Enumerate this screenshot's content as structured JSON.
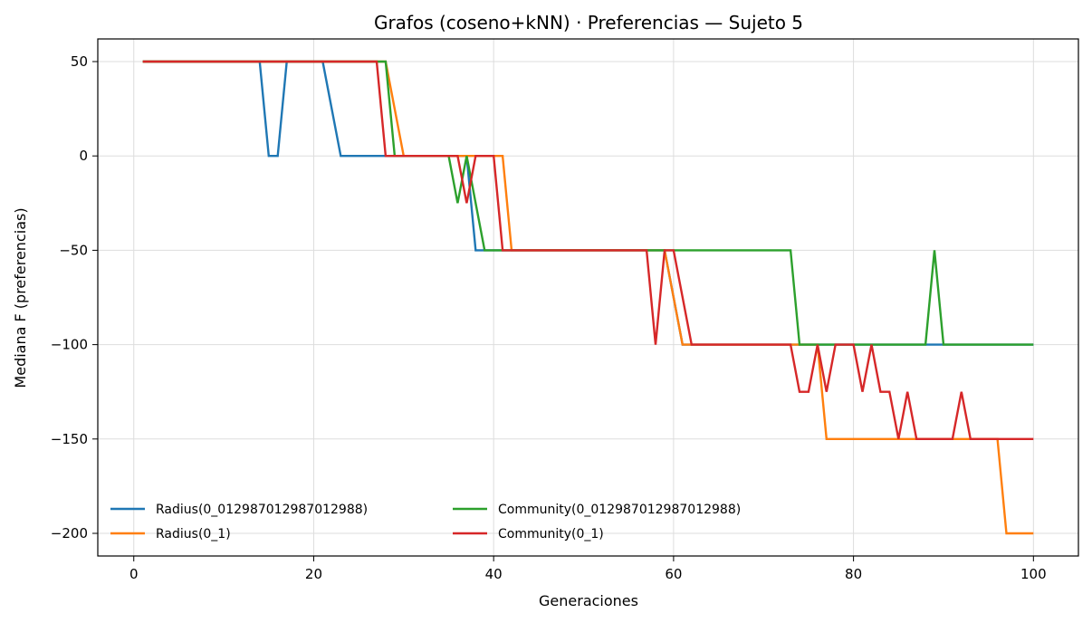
{
  "chart_data": {
    "type": "line",
    "title": "Grafos (coseno+kNN) · Preferencias — Sujeto 5",
    "xlabel": "Generaciones",
    "ylabel": "Mediana F (preferencias)",
    "xlim": [
      -4,
      105
    ],
    "ylim": [
      -212,
      62
    ],
    "xticks": [
      0,
      20,
      40,
      60,
      80,
      100
    ],
    "yticks": [
      50,
      0,
      -50,
      -100,
      -150,
      -200
    ],
    "xtick_labels": [
      "0",
      "20",
      "40",
      "60",
      "80",
      "100"
    ],
    "ytick_labels": [
      "50",
      "0",
      "−50",
      "−100",
      "−150",
      "−200"
    ],
    "grid": true,
    "legend_position": "lower-left",
    "series": [
      {
        "name": "Radius(0_012987012987012988)",
        "color": "#1f77b4",
        "points": [
          [
            1,
            50
          ],
          [
            14,
            50
          ],
          [
            15,
            0
          ],
          [
            16,
            0
          ],
          [
            17,
            50
          ],
          [
            21,
            50
          ],
          [
            23,
            0
          ],
          [
            28,
            0
          ],
          [
            29,
            0
          ],
          [
            36,
            0
          ],
          [
            37,
            0
          ],
          [
            38,
            -50
          ],
          [
            57,
            -50
          ],
          [
            59,
            -50
          ],
          [
            61,
            -100
          ],
          [
            73,
            -100
          ],
          [
            74,
            -100
          ],
          [
            88,
            -100
          ],
          [
            89,
            -100
          ],
          [
            100,
            -100
          ]
        ]
      },
      {
        "name": "Radius(0_1)",
        "color": "#ff7f0e",
        "points": [
          [
            1,
            50
          ],
          [
            28,
            50
          ],
          [
            30,
            0
          ],
          [
            40,
            0
          ],
          [
            41,
            0
          ],
          [
            42,
            -50
          ],
          [
            57,
            -50
          ],
          [
            59,
            -50
          ],
          [
            61,
            -100
          ],
          [
            76,
            -100
          ],
          [
            77,
            -150
          ],
          [
            96,
            -150
          ],
          [
            97,
            -200
          ],
          [
            100,
            -200
          ]
        ]
      },
      {
        "name": "Community(0_012987012987012988)",
        "color": "#2ca02c",
        "points": [
          [
            1,
            50
          ],
          [
            28,
            50
          ],
          [
            29,
            0
          ],
          [
            35,
            0
          ],
          [
            36,
            -25
          ],
          [
            37,
            0
          ],
          [
            39,
            -50
          ],
          [
            73,
            -50
          ],
          [
            74,
            -100
          ],
          [
            88,
            -100
          ],
          [
            89,
            -50
          ],
          [
            90,
            -100
          ],
          [
            100,
            -100
          ]
        ]
      },
      {
        "name": "Community(0_1)",
        "color": "#d62728",
        "points": [
          [
            1,
            50
          ],
          [
            27,
            50
          ],
          [
            28,
            0
          ],
          [
            36,
            0
          ],
          [
            37,
            -25
          ],
          [
            38,
            0
          ],
          [
            40,
            0
          ],
          [
            41,
            -50
          ],
          [
            57,
            -50
          ],
          [
            58,
            -100
          ],
          [
            59,
            -50
          ],
          [
            60,
            -50
          ],
          [
            62,
            -100
          ],
          [
            73,
            -100
          ],
          [
            74,
            -125
          ],
          [
            75,
            -125
          ],
          [
            76,
            -100
          ],
          [
            77,
            -125
          ],
          [
            78,
            -100
          ],
          [
            80,
            -100
          ],
          [
            81,
            -125
          ],
          [
            82,
            -100
          ],
          [
            83,
            -125
          ],
          [
            84,
            -125
          ],
          [
            85,
            -150
          ],
          [
            86,
            -125
          ],
          [
            87,
            -150
          ],
          [
            91,
            -150
          ],
          [
            92,
            -125
          ],
          [
            93,
            -150
          ],
          [
            100,
            -150
          ]
        ]
      }
    ]
  }
}
